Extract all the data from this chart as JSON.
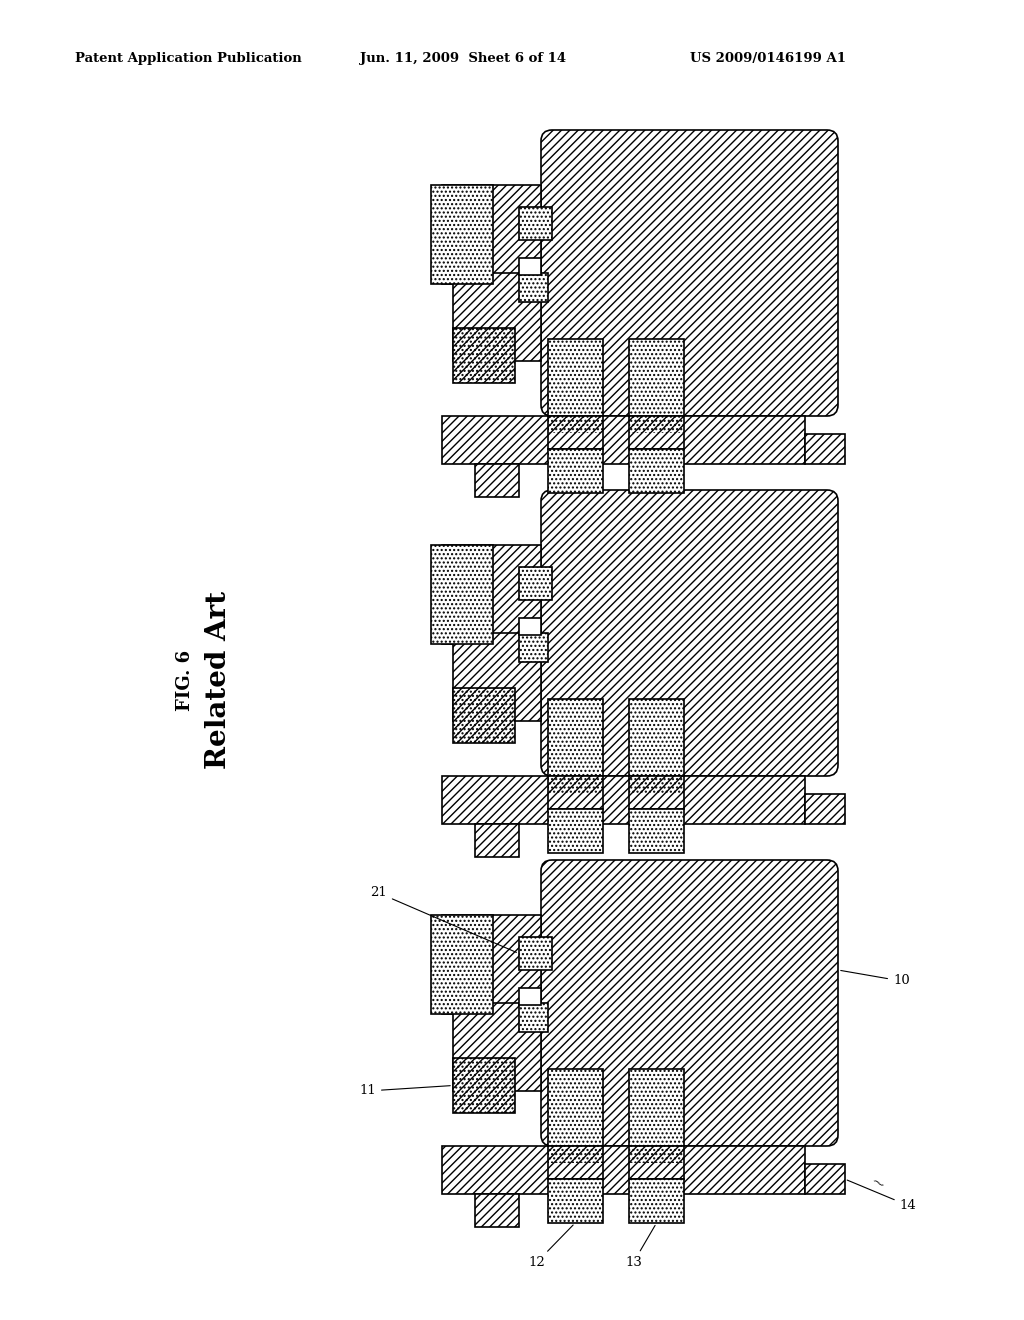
{
  "header_left": "Patent Application Publication",
  "header_mid": "Jun. 11, 2009  Sheet 6 of 14",
  "header_right": "US 2009/0146199 A1",
  "fig_label": "FIG. 6",
  "related_art": "Related Art",
  "bg_color": "#ffffff",
  "diagrams": [
    {
      "ox": 420,
      "oy": 130,
      "labels": false
    },
    {
      "ox": 420,
      "oy": 490,
      "labels": false
    },
    {
      "ox": 420,
      "oy": 860,
      "labels": true
    }
  ],
  "sc": 22
}
